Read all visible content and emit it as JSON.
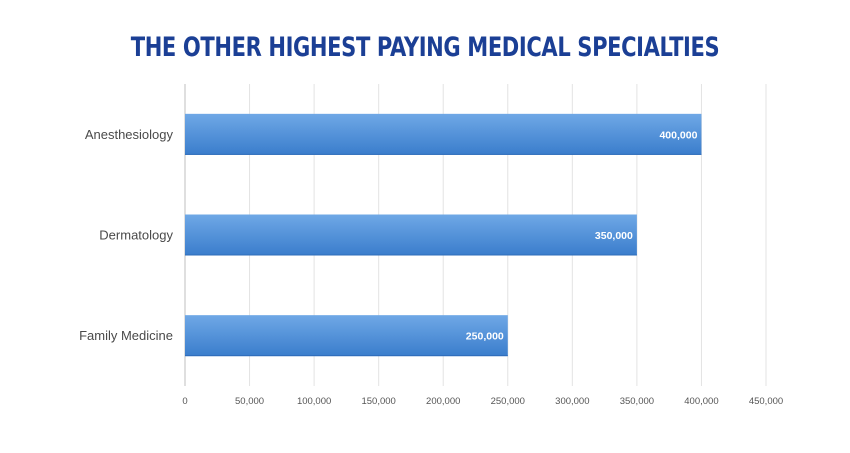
{
  "chart_data": {
    "type": "bar",
    "orientation": "horizontal",
    "title": "THE OTHER HIGHEST PAYING MEDICAL SPECIALTIES",
    "categories": [
      "Anesthesiology",
      "Dermatology",
      "Family Medicine"
    ],
    "values": [
      400000,
      350000,
      250000
    ],
    "data_labels": [
      "400,000",
      "350,000",
      "250,000"
    ],
    "xlim": [
      0,
      450000
    ],
    "x_ticks": [
      0,
      50000,
      100000,
      150000,
      200000,
      250000,
      300000,
      350000,
      400000,
      450000
    ],
    "x_tick_labels": [
      "0",
      "50,000",
      "100,000",
      "150,000",
      "200,000",
      "250,000",
      "300,000",
      "350,000",
      "400,000",
      "450,000"
    ],
    "xlabel": "",
    "ylabel": "",
    "grid": true,
    "legend": "none",
    "colors": {
      "title": "#1b3f95",
      "bar_top": "#6fa8e6",
      "bar_bottom": "#3a7dcc",
      "gridline": "#e3e3e3",
      "axis": "#bfbfbf"
    }
  }
}
